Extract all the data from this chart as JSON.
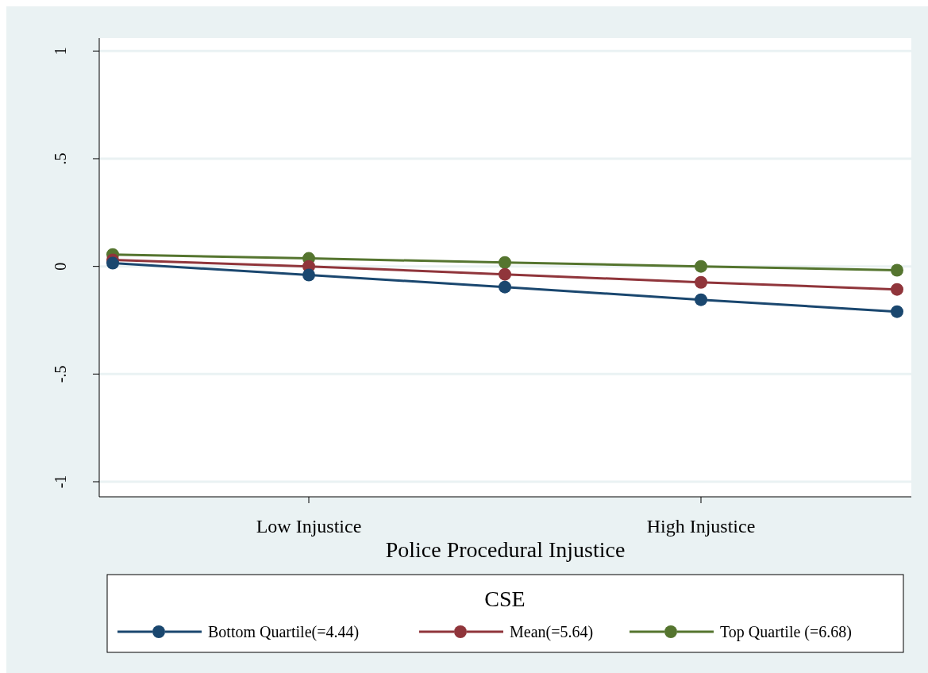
{
  "chart_data": {
    "type": "line",
    "xlabel": "Police Procedural Injustice",
    "legend_title": "CSE",
    "categories": [
      null,
      "Low Injustice",
      null,
      "High Injustice",
      null
    ],
    "ylim": [
      -1.07,
      1.06
    ],
    "yticks": [
      {
        "value": -1,
        "label": "-1"
      },
      {
        "value": -0.5,
        "label": "-.5"
      },
      {
        "value": 0,
        "label": "0"
      },
      {
        "value": 0.5,
        "label": ".5"
      },
      {
        "value": 1,
        "label": "1"
      }
    ],
    "grid": "y",
    "legend": "bottom",
    "marker": "circle",
    "line_style": "solid",
    "series": [
      {
        "name": "Bottom Quartile(=4.44)",
        "color": "#1a476f",
        "values": [
          0.015,
          -0.04,
          -0.096,
          -0.155,
          -0.21
        ]
      },
      {
        "name": "Mean(=5.64)",
        "color": "#90353b",
        "values": [
          0.03,
          0,
          -0.037,
          -0.074,
          -0.107
        ]
      },
      {
        "name": "Top Quartile (=6.68)",
        "color": "#55752f",
        "values": [
          0.055,
          0.037,
          0.018,
          0,
          -0.018
        ]
      }
    ]
  }
}
